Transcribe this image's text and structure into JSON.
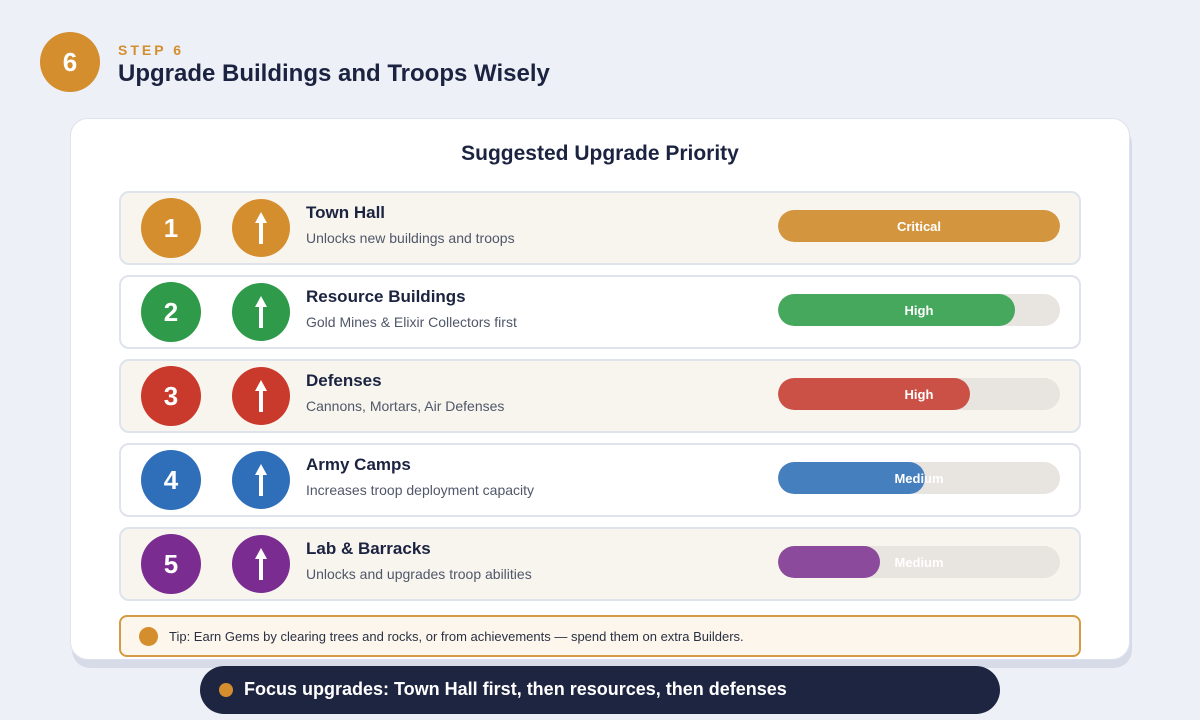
{
  "header": {
    "step_number": "6",
    "step_label": "STEP 6",
    "title": "Upgrade Buildings and Troops Wisely",
    "accent_color": "#d48e2e"
  },
  "card": {
    "title": "Suggested Upgrade Priority",
    "rows": [
      {
        "rank": "1",
        "name": "Town Hall",
        "description": "Unlocks new buildings and troops",
        "priority": "Critical",
        "level": 1.0,
        "color": "#d48e2e",
        "bar_color": "#d4953f",
        "icon": "up-arrow-icon"
      },
      {
        "rank": "2",
        "name": "Resource Buildings",
        "description": "Gold Mines & Elixir Collectors first",
        "priority": "High",
        "level": 0.84,
        "color": "#2f9a49",
        "bar_color": "#46a85d",
        "icon": "up-arrow-icon"
      },
      {
        "rank": "3",
        "name": "Defenses",
        "description": "Cannons, Mortars, Air Defenses",
        "priority": "High",
        "level": 0.68,
        "color": "#c9392c",
        "bar_color": "#cb5147",
        "icon": "up-arrow-icon"
      },
      {
        "rank": "4",
        "name": "Army Camps",
        "description": "Increases troop deployment capacity",
        "priority": "Medium",
        "level": 0.52,
        "color": "#2f6fba",
        "bar_color": "#457fbe",
        "icon": "up-arrow-icon"
      },
      {
        "rank": "5",
        "name": "Lab & Barracks",
        "description": "Unlocks and upgrades troop abilities",
        "priority": "Medium",
        "level": 0.36,
        "color": "#7a2c91",
        "bar_color": "#8b4a9b",
        "icon": "up-arrow-icon"
      }
    ]
  },
  "tip": {
    "text": "Tip: Earn Gems by clearing trees and rocks, or from achievements — spend them on extra Builders."
  },
  "footer": {
    "text": "Focus upgrades: Town Hall first, then resources, then defenses"
  }
}
